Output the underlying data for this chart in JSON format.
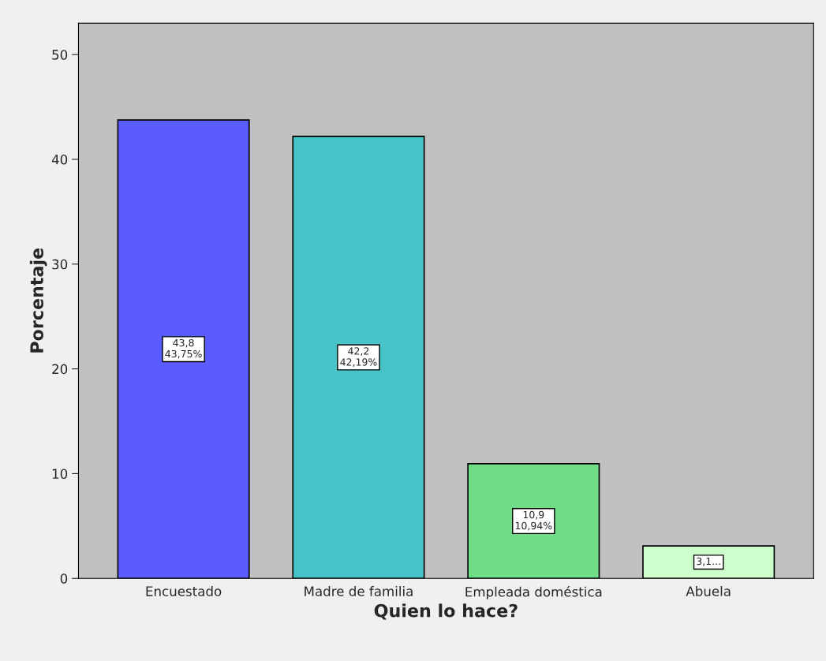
{
  "chart_data": {
    "type": "bar",
    "categories": [
      "Encuestado",
      "Madre de familia",
      "Empleada doméstica",
      "Abuela"
    ],
    "values": [
      43.75,
      42.19,
      10.94,
      3.1
    ],
    "colors": [
      "#5a5cff",
      "#48c3c8",
      "#6fdc87",
      "#ccffcc"
    ],
    "value_labels": [
      "43,8\n43,75%",
      "42,2\n42,19%",
      "10,9\n10,94%",
      "3,1..."
    ],
    "xlabel": "Quien lo hace?",
    "ylabel": "Porcentaje",
    "ylim": [
      0,
      53
    ],
    "yticks": [
      0,
      10,
      20,
      30,
      40,
      50
    ],
    "grid": false,
    "legend": false
  }
}
